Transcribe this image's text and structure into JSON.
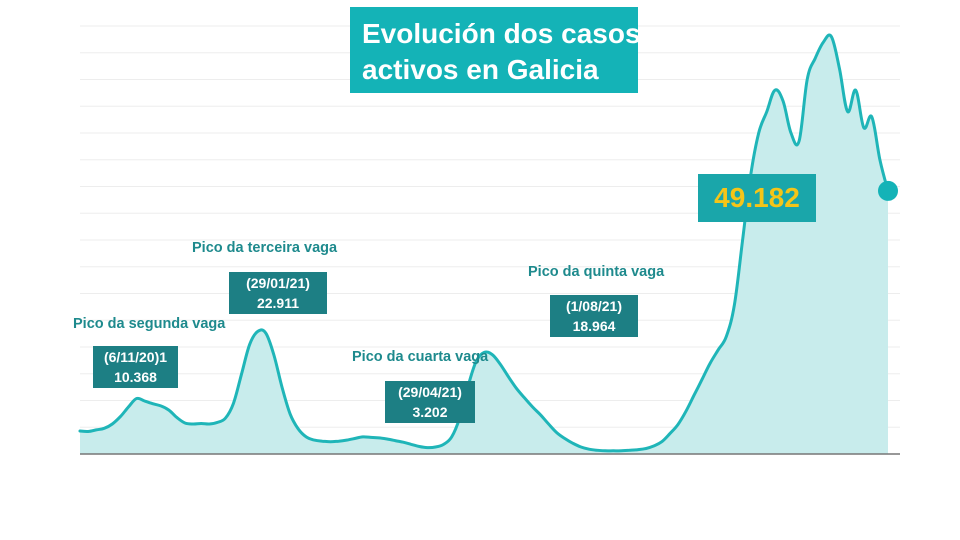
{
  "title": {
    "line1": "Evolución dos casos",
    "line2": "activos en Galicia"
  },
  "colors": {
    "accent": "#14b3b7",
    "line": "#1fb5b8",
    "area": "#c8ecec",
    "label_box": "#1d7f84",
    "label_text": "#1e8a8d",
    "current_value": "#f5c518"
  },
  "peaks": [
    {
      "label": "Pico da segunda vaga",
      "date": "(6/11/20)1",
      "value": "10.368"
    },
    {
      "label": "Pico da terceira vaga",
      "date": "(29/01/21)",
      "value": "22.911"
    },
    {
      "label": "Pico da cuarta vaga",
      "date": "(29/04/21)",
      "value": "3.202"
    },
    {
      "label": "Pico da quinta vaga",
      "date": "(1/08/21)",
      "value": "18.964"
    }
  ],
  "current": {
    "value": "49.182"
  },
  "chart_data": {
    "type": "area",
    "title": "Evolución dos casos activos en Galicia",
    "xlabel": "",
    "ylabel": "",
    "ylim": [
      0,
      80000
    ],
    "grid": true,
    "x_index_range": [
      0,
      100
    ],
    "series": [
      {
        "values": [
          [
            0,
            4300
          ],
          [
            1,
            4200
          ],
          [
            2,
            4500
          ],
          [
            3,
            4800
          ],
          [
            4,
            5600
          ],
          [
            5,
            7000
          ],
          [
            6,
            8800
          ],
          [
            7,
            10368
          ],
          [
            8,
            9900
          ],
          [
            9,
            9400
          ],
          [
            10,
            9000
          ],
          [
            11,
            8200
          ],
          [
            12,
            6800
          ],
          [
            13,
            5800
          ],
          [
            14,
            5600
          ],
          [
            15,
            5700
          ],
          [
            16,
            5600
          ],
          [
            17,
            5900
          ],
          [
            18,
            6700
          ],
          [
            19,
            9500
          ],
          [
            20,
            15000
          ],
          [
            21,
            20500
          ],
          [
            22,
            22911
          ],
          [
            23,
            22600
          ],
          [
            24,
            18500
          ],
          [
            25,
            12500
          ],
          [
            26,
            7500
          ],
          [
            27,
            4700
          ],
          [
            28,
            3200
          ],
          [
            29,
            2600
          ],
          [
            30,
            2400
          ],
          [
            31,
            2300
          ],
          [
            32,
            2400
          ],
          [
            33,
            2600
          ],
          [
            34,
            2900
          ],
          [
            35,
            3202
          ],
          [
            36,
            3100
          ],
          [
            37,
            3000
          ],
          [
            38,
            2800
          ],
          [
            39,
            2500
          ],
          [
            40,
            2200
          ],
          [
            41,
            1800
          ],
          [
            42,
            1400
          ],
          [
            43,
            1200
          ],
          [
            44,
            1300
          ],
          [
            45,
            1800
          ],
          [
            46,
            3200
          ],
          [
            47,
            6800
          ],
          [
            48,
            12500
          ],
          [
            49,
            17200
          ],
          [
            50,
            18964
          ],
          [
            51,
            18600
          ],
          [
            52,
            16800
          ],
          [
            53,
            14500
          ],
          [
            54,
            12300
          ],
          [
            55,
            10500
          ],
          [
            56,
            8800
          ],
          [
            57,
            7300
          ],
          [
            58,
            5600
          ],
          [
            59,
            4000
          ],
          [
            60,
            2900
          ],
          [
            61,
            2000
          ],
          [
            62,
            1300
          ],
          [
            63,
            900
          ],
          [
            64,
            700
          ],
          [
            65,
            600
          ],
          [
            66,
            600
          ],
          [
            67,
            600
          ],
          [
            68,
            700
          ],
          [
            69,
            800
          ],
          [
            70,
            1000
          ],
          [
            71,
            1500
          ],
          [
            72,
            2300
          ],
          [
            73,
            3800
          ],
          [
            74,
            5500
          ],
          [
            75,
            8000
          ],
          [
            76,
            11000
          ],
          [
            77,
            14000
          ],
          [
            78,
            17000
          ],
          [
            79,
            19500
          ],
          [
            80,
            22000
          ],
          [
            81,
            28000
          ],
          [
            82,
            40000
          ],
          [
            83,
            52000
          ],
          [
            84,
            60000
          ],
          [
            85,
            64000
          ],
          [
            86,
            68000
          ],
          [
            87,
            66000
          ],
          [
            88,
            60000
          ],
          [
            89,
            58500
          ],
          [
            90,
            70000
          ],
          [
            91,
            74000
          ],
          [
            92,
            77000
          ],
          [
            93,
            78000
          ],
          [
            94,
            72000
          ],
          [
            95,
            64000
          ],
          [
            96,
            68000
          ],
          [
            97,
            61000
          ],
          [
            98,
            63000
          ],
          [
            99,
            55000
          ],
          [
            100,
            49182
          ]
        ]
      }
    ]
  }
}
